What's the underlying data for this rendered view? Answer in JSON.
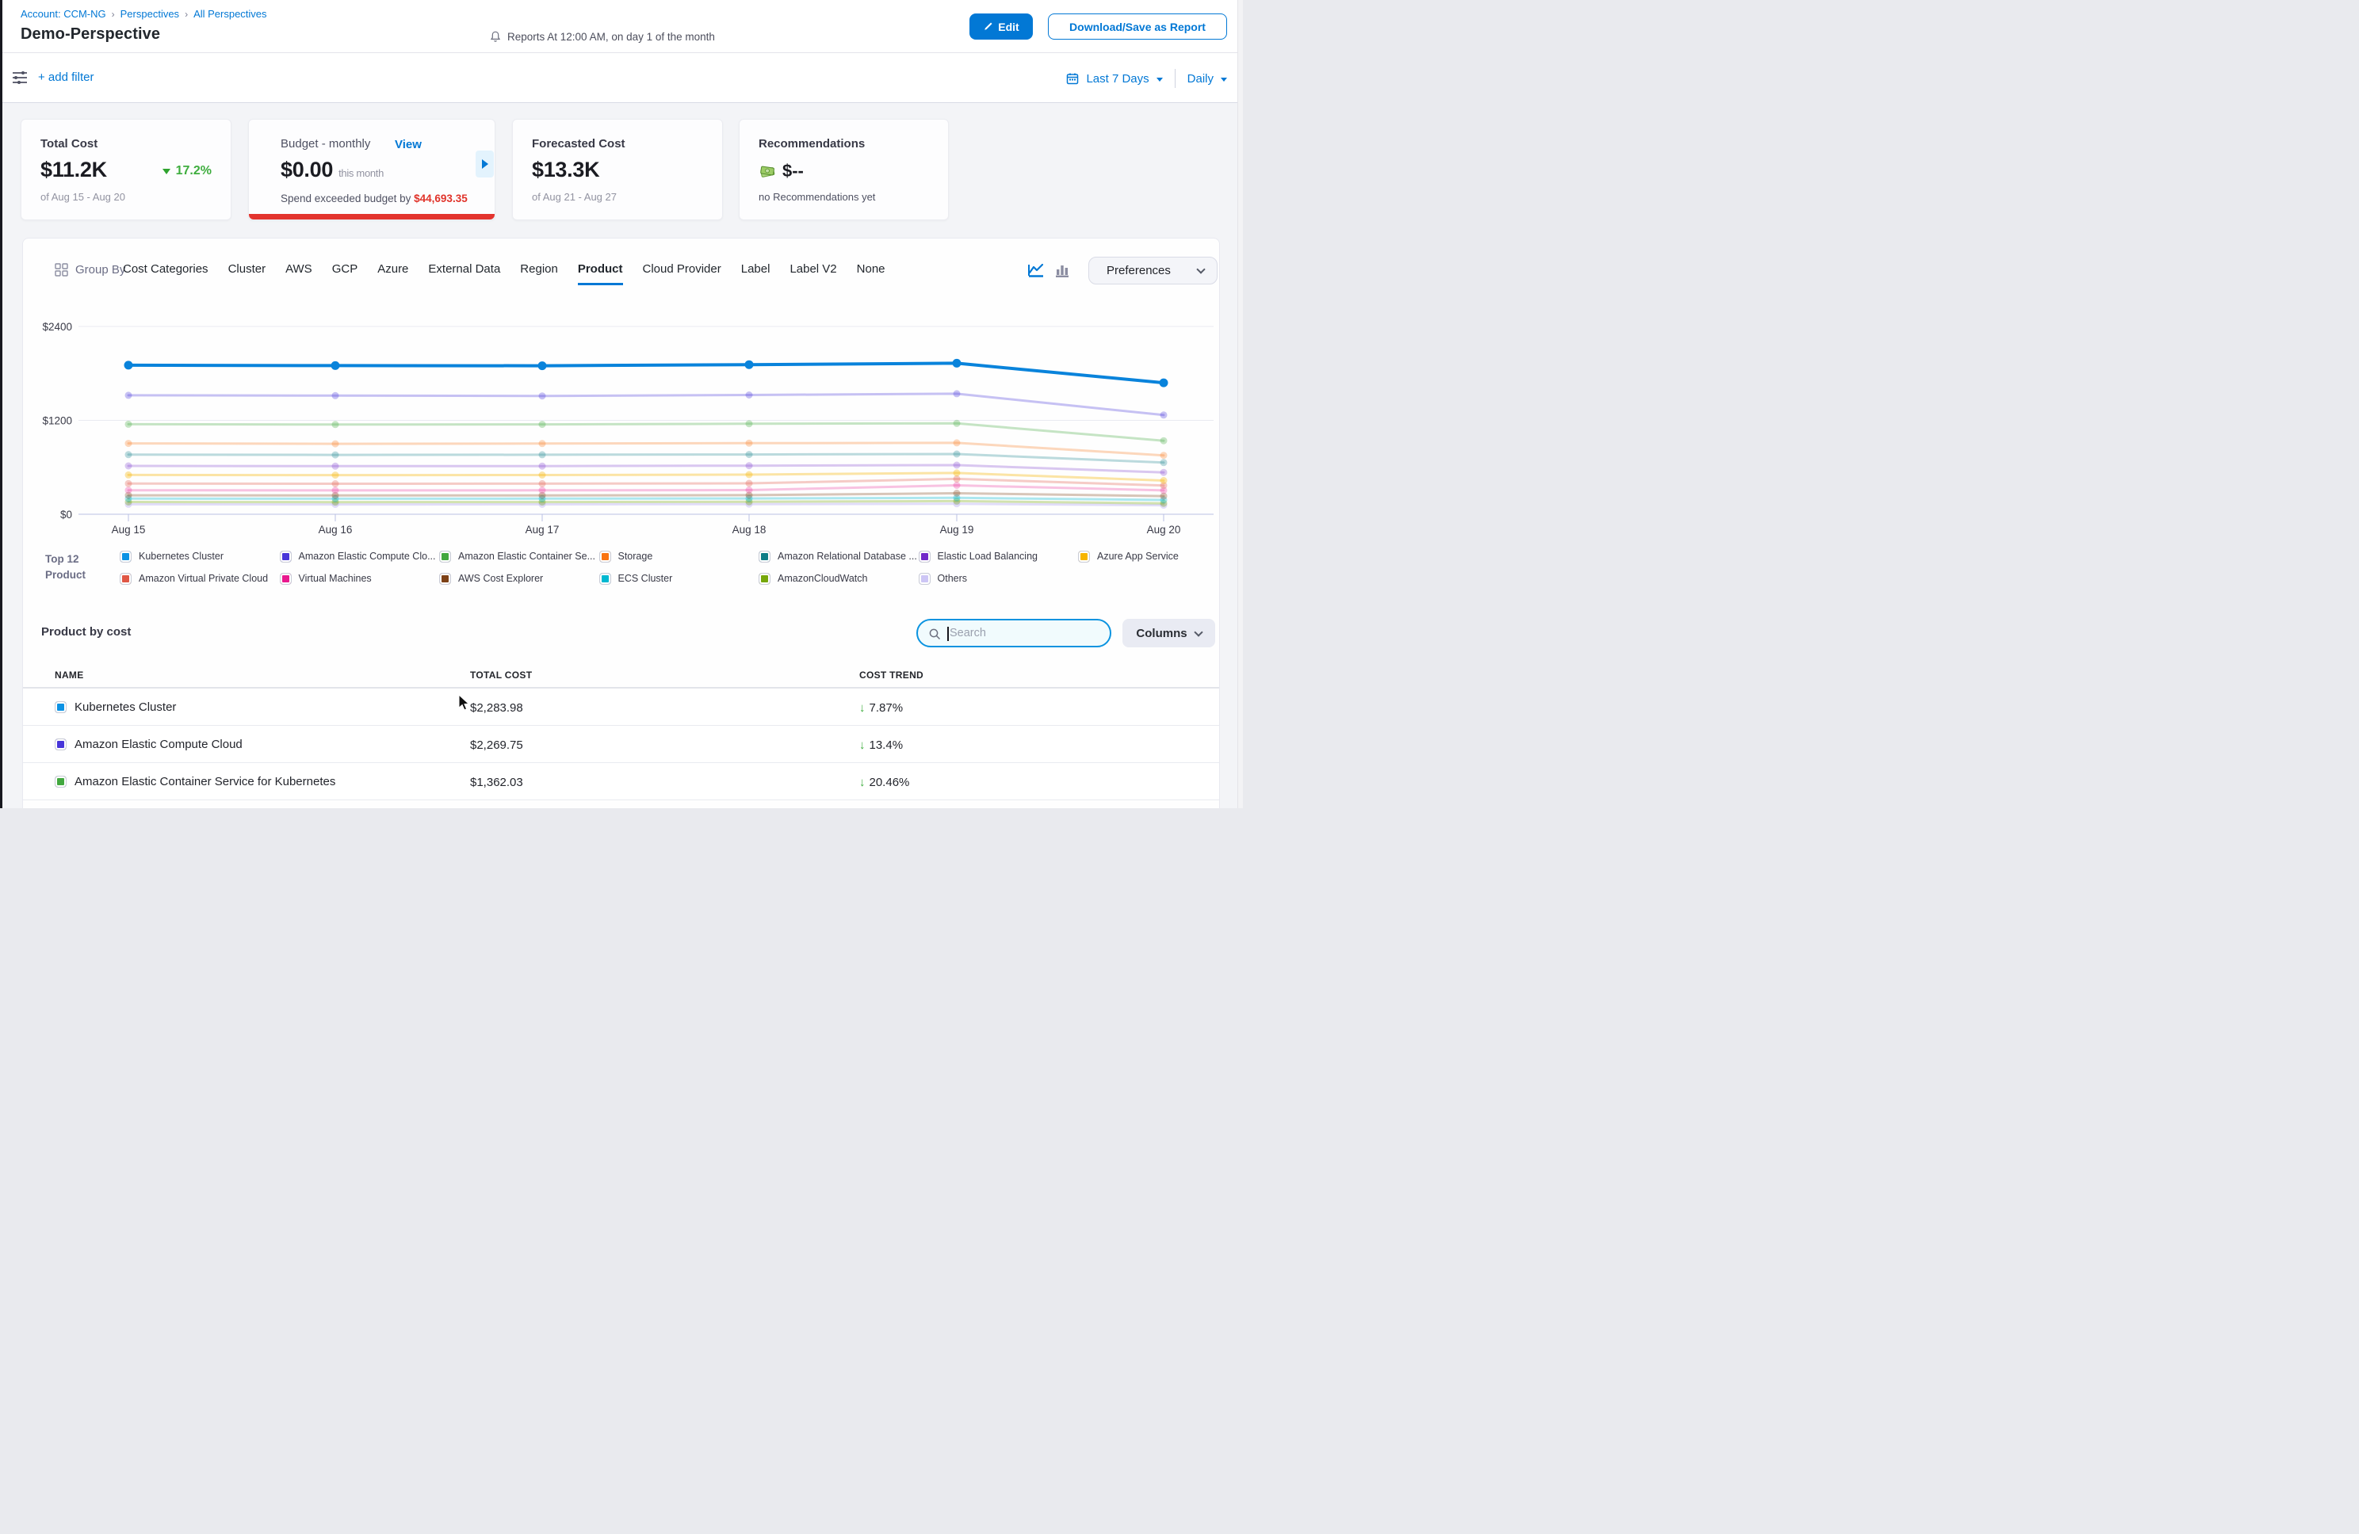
{
  "header": {
    "breadcrumb": {
      "separator": "›",
      "items": [
        "Account: CCM-NG",
        "Perspectives",
        "All Perspectives"
      ]
    },
    "title": "Demo-Perspective",
    "reports_note": "Reports At 12:00 AM, on day 1 of the month",
    "edit_label": "Edit",
    "download_label": "Download/Save as Report"
  },
  "filter_bar": {
    "add_filter_label": "+ add filter",
    "date_range_label": "Last 7 Days",
    "granularity_label": "Daily"
  },
  "cards": {
    "total_cost": {
      "label": "Total Cost",
      "value": "$11.2K",
      "trend": "17.2%",
      "period": "of Aug 15 - Aug 20"
    },
    "budget": {
      "label": "Budget - monthly",
      "view_label": "View",
      "value": "$0.00",
      "value_suffix": "this month",
      "exceeded_text": "Spend exceeded budget by ",
      "exceeded_amount": "$44,693.35"
    },
    "forecasted": {
      "label": "Forecasted Cost",
      "value": "$13.3K",
      "period": "of Aug 21 - Aug 27"
    },
    "recommendations": {
      "label": "Recommendations",
      "value": "$--",
      "note": "no Recommendations yet"
    }
  },
  "group_by": {
    "label": "Group By",
    "tabs": [
      "Cost Categories",
      "Cluster",
      "AWS",
      "GCP",
      "Azure",
      "External Data",
      "Region",
      "Product",
      "Cloud Provider",
      "Label",
      "Label V2",
      "None"
    ],
    "active_tab": "Product",
    "preferences_label": "Preferences"
  },
  "chart_data": {
    "type": "line",
    "title": "Daily cost by product",
    "unit": "USD",
    "x_categories": [
      "Aug 15",
      "Aug 16",
      "Aug 17",
      "Aug 18",
      "Aug 19",
      "Aug 20"
    ],
    "y_ticks": [
      {
        "label": "$2400",
        "value": 2400
      },
      {
        "label": "$1200",
        "value": 1200
      },
      {
        "label": "$0",
        "value": 0
      }
    ],
    "ylim": [
      0,
      2400
    ],
    "grid": true,
    "legend_position": "bottom",
    "series": [
      {
        "name": "Kubernetes Cluster",
        "color": "#0983db",
        "opacity": 1,
        "width": 4,
        "values": [
          1905,
          1900,
          1898,
          1912,
          1930,
          1680
        ]
      },
      {
        "name": "Amazon Elastic Compute Cloud",
        "color": "#4735d9",
        "opacity": 0.3,
        "width": 3,
        "values": [
          1520,
          1516,
          1512,
          1524,
          1540,
          1268
        ]
      },
      {
        "name": "Amazon Elastic Container Service for Kubernetes",
        "color": "#42a83f",
        "opacity": 0.3,
        "width": 3,
        "values": [
          1150,
          1146,
          1148,
          1156,
          1162,
          940
        ]
      },
      {
        "name": "Storage",
        "color": "#f97412",
        "opacity": 0.28,
        "width": 3,
        "values": [
          905,
          900,
          903,
          908,
          912,
          752
        ]
      },
      {
        "name": "Amazon Relational Database Service",
        "color": "#0d7d87",
        "opacity": 0.28,
        "width": 3,
        "values": [
          762,
          758,
          760,
          764,
          770,
          660
        ]
      },
      {
        "name": "Elastic Load Balancing",
        "color": "#7129c9",
        "opacity": 0.26,
        "width": 3,
        "values": [
          618,
          615,
          616,
          621,
          628,
          535
        ]
      },
      {
        "name": "Azure App Service",
        "color": "#f7b500",
        "opacity": 0.35,
        "width": 3,
        "values": [
          502,
          500,
          501,
          506,
          528,
          430
        ]
      },
      {
        "name": "Amazon Virtual Private Cloud",
        "color": "#e05745",
        "opacity": 0.3,
        "width": 3,
        "values": [
          392,
          390,
          391,
          395,
          452,
          368
        ]
      },
      {
        "name": "Virtual Machines",
        "color": "#e9188e",
        "opacity": 0.26,
        "width": 3,
        "values": [
          307,
          305,
          306,
          309,
          370,
          305
        ]
      },
      {
        "name": "AWS Cost Explorer",
        "color": "#7d4116",
        "opacity": 0.3,
        "width": 3,
        "values": [
          242,
          240,
          241,
          244,
          268,
          232
        ]
      },
      {
        "name": "ECS Cluster",
        "color": "#00b8d1",
        "opacity": 0.32,
        "width": 3,
        "values": [
          200,
          198,
          199,
          202,
          210,
          182
        ]
      },
      {
        "name": "AmazonCloudWatch",
        "color": "#76a70a",
        "opacity": 0.32,
        "width": 3,
        "values": [
          157,
          155,
          156,
          159,
          168,
          140
        ]
      },
      {
        "name": "Others",
        "color": "#cdc6f5",
        "opacity": 0.6,
        "width": 3,
        "values": [
          128,
          126,
          127,
          130,
          134,
          115
        ]
      }
    ]
  },
  "legend": {
    "title_line1": "Top 12",
    "title_line2": "Product",
    "items": [
      {
        "label": "Kubernetes Cluster",
        "color": "#0b92e4"
      },
      {
        "label": "Amazon Elastic Compute Clo...",
        "color": "#4735d9"
      },
      {
        "label": "Amazon Elastic Container Se...",
        "color": "#42a83f"
      },
      {
        "label": "Storage",
        "color": "#f97412"
      },
      {
        "label": "Amazon Relational Database ...",
        "color": "#0d7d87"
      },
      {
        "label": "Elastic Load Balancing",
        "color": "#7129c9"
      },
      {
        "label": "Azure App Service",
        "color": "#f7b500"
      },
      {
        "label": "Amazon Virtual Private Cloud",
        "color": "#e05745"
      },
      {
        "label": "Virtual Machines",
        "color": "#e9188e"
      },
      {
        "label": "AWS Cost Explorer",
        "color": "#7d4116"
      },
      {
        "label": "ECS Cluster",
        "color": "#00b8d1"
      },
      {
        "label": "AmazonCloudWatch",
        "color": "#76a70a"
      },
      {
        "label": "Others",
        "color": "#cdc6f5"
      }
    ]
  },
  "table": {
    "title": "Product by cost",
    "search_placeholder": "Search",
    "columns_label": "Columns",
    "headers": [
      "NAME",
      "TOTAL COST",
      "COST TREND"
    ],
    "rows": [
      {
        "color": "#0b92e4",
        "name": "Kubernetes Cluster",
        "total_cost": "$2,283.98",
        "trend": "7.87%",
        "trend_direction": "down",
        "trend_arrow": "↓"
      },
      {
        "color": "#4735d9",
        "name": "Amazon Elastic Compute Cloud",
        "total_cost": "$2,269.75",
        "trend": "13.4%",
        "trend_direction": "down",
        "trend_arrow": "↓"
      },
      {
        "color": "#42a83f",
        "name": "Amazon Elastic Container Service for Kubernetes",
        "total_cost": "$1,362.03",
        "trend": "20.46%",
        "trend_direction": "down",
        "trend_arrow": "↓"
      }
    ]
  },
  "colors": {
    "accent": "#0278d5",
    "positive": "#3ead3e",
    "negative": "#e3342e"
  }
}
